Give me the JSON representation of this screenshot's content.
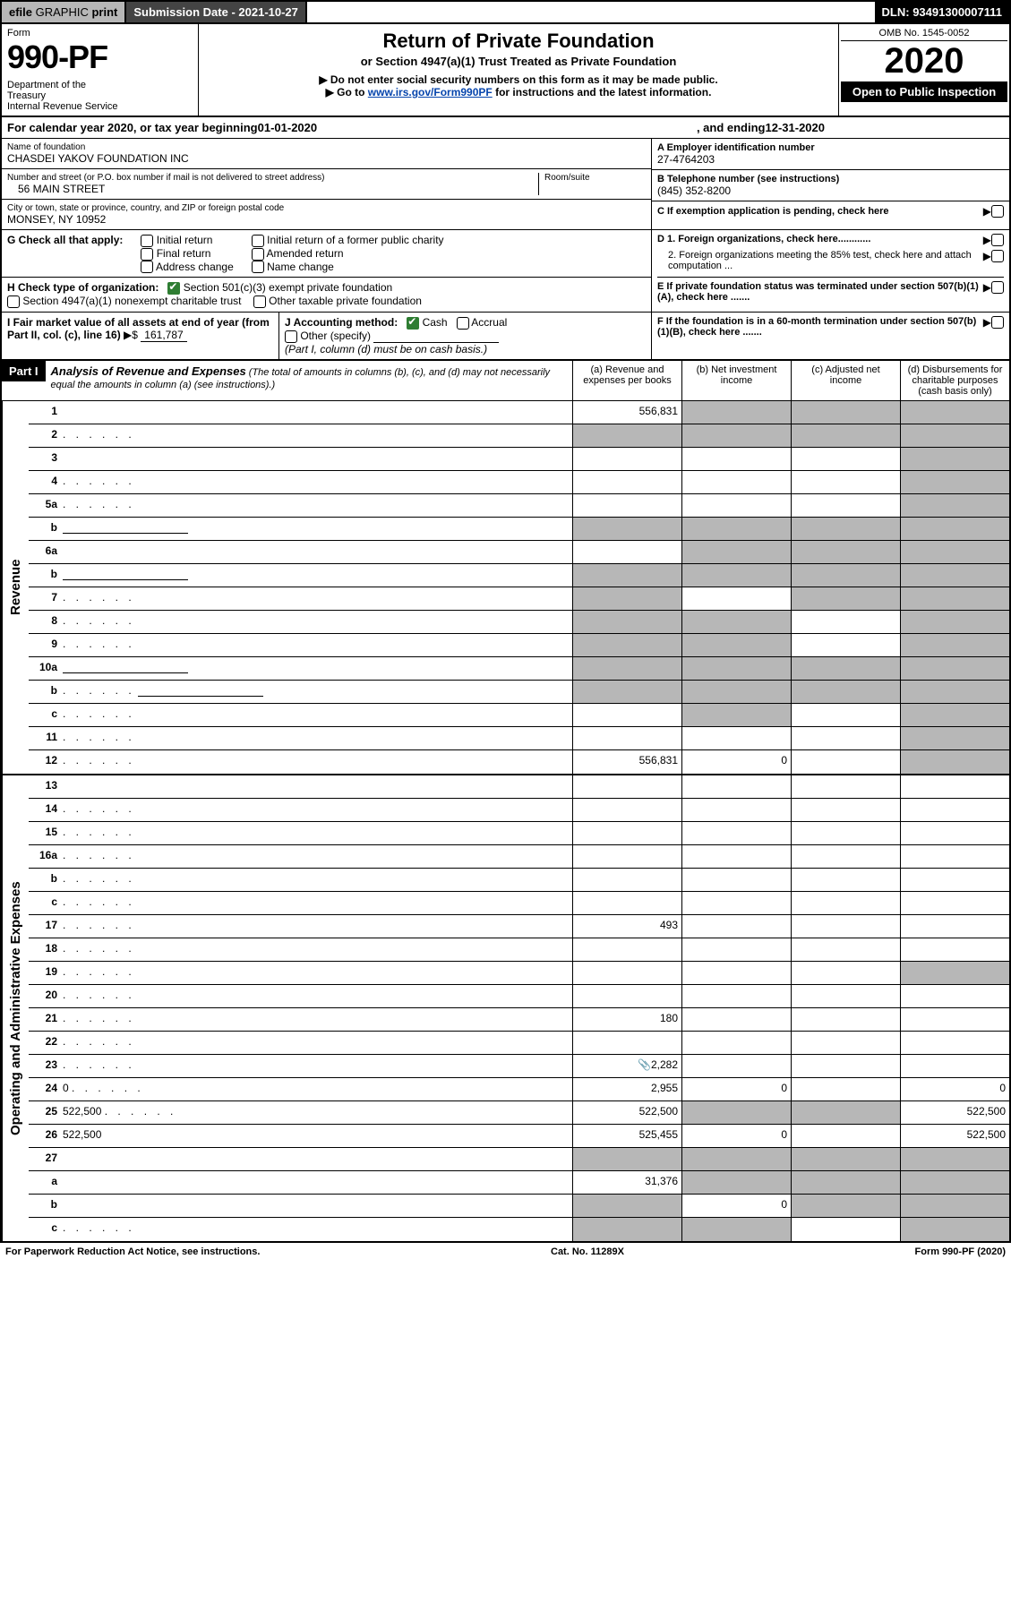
{
  "topbar": {
    "efile_bold": "efile",
    "efile_light": " GRAPHIC ",
    "efile_print": "print",
    "submission": "Submission Date - 2021-10-27",
    "dln": "DLN: 93491300007111"
  },
  "header": {
    "form": "Form",
    "number": "990-PF",
    "dept": "Department of the Treasury\nInternal Revenue Service",
    "title": "Return of Private Foundation",
    "subtitle": "or Section 4947(a)(1) Trust Treated as Private Foundation",
    "note1": "▶ Do not enter social security numbers on this form as it may be made public.",
    "note2_pre": "▶ Go to ",
    "note2_link": "www.irs.gov/Form990PF",
    "note2_post": " for instructions and the latest information.",
    "omb": "OMB No. 1545-0052",
    "year": "2020",
    "open": "Open to Public Inspection"
  },
  "calendar": {
    "pre": "For calendar year 2020, or tax year beginning ",
    "begin": "01-01-2020",
    "mid": ", and ending ",
    "end": "12-31-2020"
  },
  "info": {
    "name_label": "Name of foundation",
    "name": "CHASDEI YAKOV FOUNDATION INC",
    "street_label": "Number and street (or P.O. box number if mail is not delivered to street address)",
    "street": "56 MAIN STREET",
    "room_label": "Room/suite",
    "city_label": "City or town, state or province, country, and ZIP or foreign postal code",
    "city": "MONSEY, NY  10952",
    "ein_label": "A Employer identification number",
    "ein": "27-4764203",
    "phone_label": "B Telephone number (see instructions)",
    "phone": "(845) 352-8200",
    "c_label": "C If exemption application is pending, check here",
    "d1": "D 1. Foreign organizations, check here............",
    "d2": "2. Foreign organizations meeting the 85% test, check here and attach computation ...",
    "e": "E  If private foundation status was terminated under section 507(b)(1)(A), check here .......",
    "f": "F  If the foundation is in a 60-month termination under section 507(b)(1)(B), check here ......."
  },
  "g": {
    "label": "G Check all that apply:",
    "opts": [
      "Initial return",
      "Final return",
      "Address change",
      "Initial return of a former public charity",
      "Amended return",
      "Name change"
    ]
  },
  "h": {
    "label": "H Check type of organization:",
    "opt1": "Section 501(c)(3) exempt private foundation",
    "opt2": "Section 4947(a)(1) nonexempt charitable trust",
    "opt3": "Other taxable private foundation"
  },
  "i": {
    "label": "I Fair market value of all assets at end of year (from Part II, col. (c), line 16)",
    "arrow": "▶$",
    "value": "161,787"
  },
  "j": {
    "label": "J Accounting method:",
    "cash": "Cash",
    "accrual": "Accrual",
    "other": "Other (specify)",
    "note": "(Part I, column (d) must be on cash basis.)"
  },
  "part1": {
    "tag": "Part I",
    "title": "Analysis of Revenue and Expenses",
    "note": " (The total of amounts in columns (b), (c), and (d) may not necessarily equal the amounts in column (a) (see instructions).)",
    "cols": {
      "a": "(a)  Revenue and expenses per books",
      "b": "(b)  Net investment income",
      "c": "(c)  Adjusted net income",
      "d": "(d)  Disbursements for charitable purposes (cash basis only)"
    }
  },
  "side_labels": {
    "revenue": "Revenue",
    "expenses": "Operating and Administrative Expenses"
  },
  "rows_revenue": [
    {
      "n": "1",
      "d": "",
      "a": "556,831",
      "b": "",
      "c": "",
      "sa": false,
      "sb": true,
      "sc": true,
      "sd": true
    },
    {
      "n": "2",
      "d": "",
      "dots": true,
      "a": "",
      "b": "",
      "c": "",
      "sa": true,
      "sb": true,
      "sc": true,
      "sd": true
    },
    {
      "n": "3",
      "d": "",
      "a": "",
      "b": "",
      "c": "",
      "sa": false,
      "sb": false,
      "sc": false,
      "sd": true
    },
    {
      "n": "4",
      "d": "",
      "dots": true,
      "a": "",
      "b": "",
      "c": "",
      "sa": false,
      "sb": false,
      "sc": false,
      "sd": true
    },
    {
      "n": "5a",
      "d": "",
      "dots": true,
      "a": "",
      "b": "",
      "c": "",
      "sa": false,
      "sb": false,
      "sc": false,
      "sd": true
    },
    {
      "n": "b",
      "d": "",
      "under": true,
      "a": "",
      "b": "",
      "c": "",
      "sa": true,
      "sb": true,
      "sc": true,
      "sd": true
    },
    {
      "n": "6a",
      "d": "",
      "a": "",
      "b": "",
      "c": "",
      "sa": false,
      "sb": true,
      "sc": true,
      "sd": true
    },
    {
      "n": "b",
      "d": "",
      "under": true,
      "a": "",
      "b": "",
      "c": "",
      "sa": true,
      "sb": true,
      "sc": true,
      "sd": true
    },
    {
      "n": "7",
      "d": "",
      "dots": true,
      "a": "",
      "b": "",
      "c": "",
      "sa": true,
      "sb": false,
      "sc": true,
      "sd": true
    },
    {
      "n": "8",
      "d": "",
      "dots": true,
      "a": "",
      "b": "",
      "c": "",
      "sa": true,
      "sb": true,
      "sc": false,
      "sd": true
    },
    {
      "n": "9",
      "d": "",
      "dots": true,
      "a": "",
      "b": "",
      "c": "",
      "sa": true,
      "sb": true,
      "sc": false,
      "sd": true
    },
    {
      "n": "10a",
      "d": "",
      "under": true,
      "a": "",
      "b": "",
      "c": "",
      "sa": true,
      "sb": true,
      "sc": true,
      "sd": true
    },
    {
      "n": "b",
      "d": "",
      "dots": true,
      "under": true,
      "a": "",
      "b": "",
      "c": "",
      "sa": true,
      "sb": true,
      "sc": true,
      "sd": true
    },
    {
      "n": "c",
      "d": "",
      "dots": true,
      "a": "",
      "b": "",
      "c": "",
      "sa": false,
      "sb": true,
      "sc": false,
      "sd": true
    },
    {
      "n": "11",
      "d": "",
      "dots": true,
      "a": "",
      "b": "",
      "c": "",
      "sa": false,
      "sb": false,
      "sc": false,
      "sd": true
    },
    {
      "n": "12",
      "d": "",
      "dots": true,
      "a": "556,831",
      "b": "0",
      "c": "",
      "sa": false,
      "sb": false,
      "sc": false,
      "sd": true
    }
  ],
  "rows_expenses": [
    {
      "n": "13",
      "d": "",
      "a": "",
      "b": "",
      "c": ""
    },
    {
      "n": "14",
      "d": "",
      "dots": true,
      "a": "",
      "b": "",
      "c": ""
    },
    {
      "n": "15",
      "d": "",
      "dots": true,
      "a": "",
      "b": "",
      "c": ""
    },
    {
      "n": "16a",
      "d": "",
      "dots": true,
      "a": "",
      "b": "",
      "c": ""
    },
    {
      "n": "b",
      "d": "",
      "dots": true,
      "a": "",
      "b": "",
      "c": ""
    },
    {
      "n": "c",
      "d": "",
      "dots": true,
      "a": "",
      "b": "",
      "c": ""
    },
    {
      "n": "17",
      "d": "",
      "dots": true,
      "a": "493",
      "b": "",
      "c": ""
    },
    {
      "n": "18",
      "d": "",
      "dots": true,
      "a": "",
      "b": "",
      "c": ""
    },
    {
      "n": "19",
      "d": "",
      "dots": true,
      "a": "",
      "b": "",
      "c": "",
      "sd": true
    },
    {
      "n": "20",
      "d": "",
      "dots": true,
      "a": "",
      "b": "",
      "c": ""
    },
    {
      "n": "21",
      "d": "",
      "dots": true,
      "a": "180",
      "b": "",
      "c": ""
    },
    {
      "n": "22",
      "d": "",
      "dots": true,
      "a": "",
      "b": "",
      "c": ""
    },
    {
      "n": "23",
      "d": "",
      "dots": true,
      "a": "2,282",
      "b": "",
      "c": "",
      "icon": true
    },
    {
      "n": "24",
      "d": "0",
      "dots": true,
      "a": "2,955",
      "b": "0",
      "c": ""
    },
    {
      "n": "25",
      "d": "522,500",
      "dots": true,
      "a": "522,500",
      "b": "",
      "c": "",
      "sb": true,
      "sc": true
    },
    {
      "n": "26",
      "d": "522,500",
      "a": "525,455",
      "b": "0",
      "c": ""
    },
    {
      "n": "27",
      "d": "",
      "a": "",
      "b": "",
      "c": "",
      "sa": true,
      "sb": true,
      "sc": true,
      "sd": true
    },
    {
      "n": "a",
      "d": "",
      "a": "31,376",
      "b": "",
      "c": "",
      "sb": true,
      "sc": true,
      "sd": true
    },
    {
      "n": "b",
      "d": "",
      "a": "",
      "b": "0",
      "c": "",
      "sa": true,
      "sc": true,
      "sd": true
    },
    {
      "n": "c",
      "d": "",
      "dots": true,
      "a": "",
      "b": "",
      "c": "",
      "sa": true,
      "sb": true,
      "sd": true
    }
  ],
  "footer": {
    "left": "For Paperwork Reduction Act Notice, see instructions.",
    "mid": "Cat. No. 11289X",
    "right": "Form 990-PF (2020)"
  },
  "colors": {
    "shade": "#b7b7b7",
    "green": "#2e7d32",
    "link": "#0645ad"
  }
}
